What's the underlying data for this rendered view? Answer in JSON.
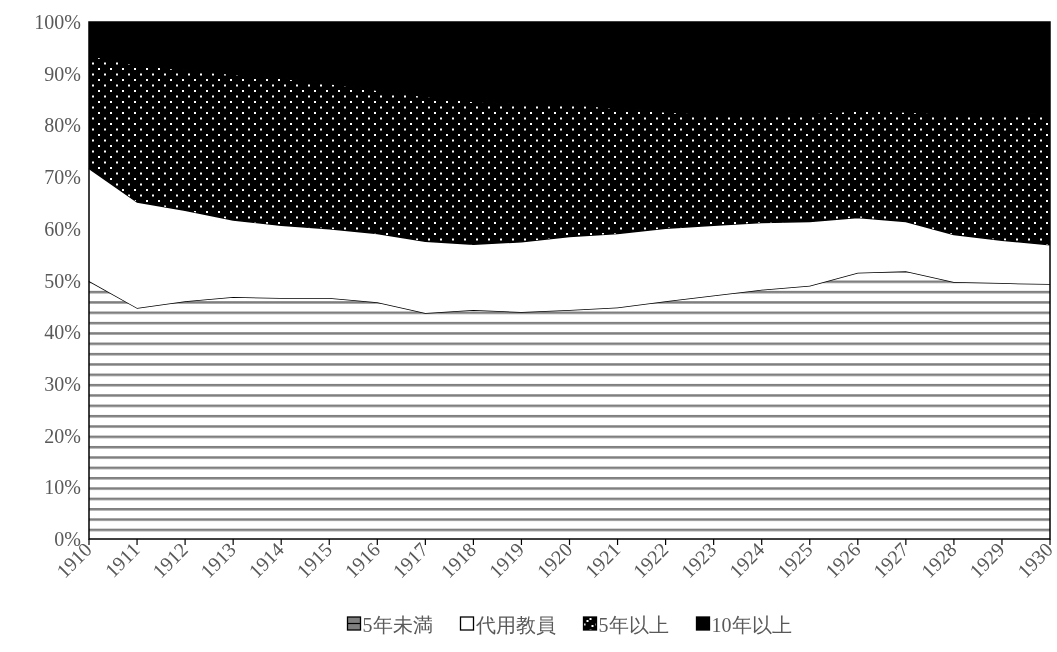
{
  "chart_data": {
    "type": "area",
    "stacked": true,
    "x": [
      1910,
      1911,
      1912,
      1913,
      1914,
      1915,
      1916,
      1917,
      1918,
      1919,
      1920,
      1921,
      1922,
      1923,
      1924,
      1925,
      1926,
      1927,
      1928,
      1929,
      1930
    ],
    "series": [
      {
        "name": "5年未満",
        "color": "#7f7f7f",
        "values": [
          49.9,
          44.7,
          46.0,
          46.8,
          46.6,
          46.6,
          45.8,
          43.7,
          44.3,
          43.9,
          44.3,
          44.8,
          46.0,
          47.1,
          48.2,
          49.0,
          51.5,
          51.8,
          49.7,
          49.5,
          49.3
        ]
      },
      {
        "name": "代用教員",
        "color": "#ffffff",
        "values": [
          21.8,
          20.5,
          17.6,
          14.9,
          14.1,
          13.4,
          13.3,
          13.9,
          12.7,
          13.6,
          14.2,
          14.3,
          14.1,
          13.6,
          13.0,
          12.4,
          10.7,
          9.6,
          9.2,
          8.3,
          7.6
        ]
      },
      {
        "name": "5年以上",
        "color": "#000000",
        "values": [
          21.8,
          26.5,
          27.1,
          28.2,
          28.4,
          28.1,
          27.7,
          28.0,
          27.6,
          26.5,
          25.6,
          24.2,
          22.5,
          21.4,
          20.9,
          20.9,
          20.6,
          21.2,
          23.2,
          24.3,
          25.4
        ]
      },
      {
        "name": "10年以上",
        "color": "#000000",
        "values": [
          6.5,
          8.3,
          9.3,
          10.1,
          10.9,
          11.9,
          13.2,
          14.4,
          15.4,
          16.0,
          15.9,
          16.7,
          17.4,
          17.9,
          17.9,
          17.7,
          17.2,
          17.4,
          17.9,
          17.9,
          17.7
        ]
      }
    ],
    "xlim": [
      1910,
      1930
    ],
    "xticks": [
      1910,
      1911,
      1912,
      1913,
      1914,
      1915,
      1916,
      1917,
      1918,
      1919,
      1920,
      1921,
      1922,
      1923,
      1924,
      1925,
      1926,
      1927,
      1928,
      1929,
      1930
    ],
    "ylim": [
      0,
      100
    ],
    "yticks": [
      {
        "value": 0,
        "label": "0%"
      },
      {
        "value": 10,
        "label": "10%"
      },
      {
        "value": 20,
        "label": "20%"
      },
      {
        "value": 30,
        "label": "30%"
      },
      {
        "value": 40,
        "label": "40%"
      },
      {
        "value": 50,
        "label": "50%"
      },
      {
        "value": 60,
        "label": "60%"
      },
      {
        "value": 70,
        "label": "70%"
      },
      {
        "value": 80,
        "label": "80%"
      },
      {
        "value": 90,
        "label": "90%"
      },
      {
        "value": 100,
        "label": "100%"
      }
    ],
    "grid": false,
    "legend": "bottom"
  }
}
